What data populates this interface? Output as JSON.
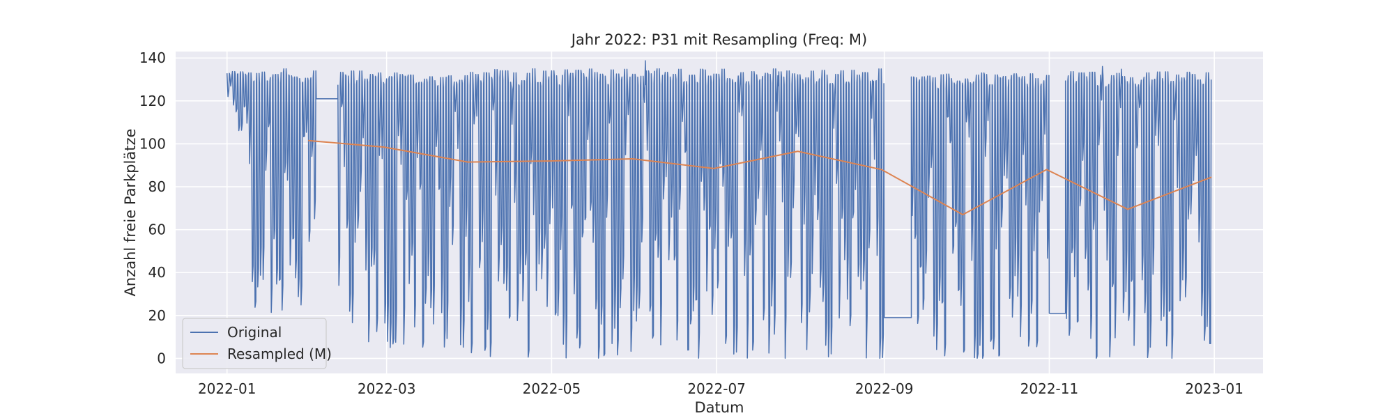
{
  "chart_data": {
    "type": "line",
    "title": "Jahr 2022: P31 mit Resampling (Freq: M)",
    "xlabel": "Datum",
    "ylabel": "Anzahl freie Parkplätze",
    "x_type": "date",
    "xlim": [
      "2021-12-13",
      "2023-01-19"
    ],
    "ylim": [
      -7,
      143
    ],
    "x_ticks": [
      "2022-01",
      "2022-03",
      "2022-05",
      "2022-07",
      "2022-09",
      "2022-11",
      "2023-01"
    ],
    "y_ticks": [
      0,
      20,
      40,
      60,
      80,
      100,
      120,
      140
    ],
    "grid": true,
    "legend": {
      "position": "lower-left"
    },
    "colors": {
      "original": "#4c72b0",
      "resampled": "#dd8452",
      "plot_bg": "#eaeaf2",
      "grid": "#ffffff"
    },
    "series": [
      {
        "name": "Original",
        "kind": "dense-daily-oscillation",
        "segments": [
          {
            "start": "2022-01-01",
            "end": "2022-01-08",
            "low": 105,
            "high": 134
          },
          {
            "start": "2022-01-08",
            "end": "2022-02-01",
            "low": 20,
            "high": 135
          },
          {
            "start": "2022-02-01",
            "end": "2022-02-03",
            "low": 45,
            "high": 135
          },
          {
            "start": "2022-02-03",
            "end": "2022-02-11",
            "flat": 121
          },
          {
            "start": "2022-02-11",
            "end": "2022-03-31",
            "low": 5,
            "high": 134
          },
          {
            "start": "2022-03-31",
            "end": "2022-05-31",
            "low": 0,
            "high": 135
          },
          {
            "start": "2022-05-31",
            "end": "2022-08-31",
            "low": 0,
            "high": 135
          },
          {
            "start": "2022-08-31",
            "end": "2022-09-01",
            "low": 0,
            "high": 132
          },
          {
            "start": "2022-09-01",
            "end": "2022-09-11",
            "flat": 19
          },
          {
            "start": "2022-09-11",
            "end": "2022-10-31",
            "low": 0,
            "high": 133
          },
          {
            "start": "2022-10-31",
            "end": "2022-11-01",
            "low": 20,
            "high": 132
          },
          {
            "start": "2022-11-01",
            "end": "2022-11-07",
            "flat": 21
          },
          {
            "start": "2022-11-07",
            "end": "2022-12-31",
            "low": 0,
            "high": 134
          }
        ]
      },
      {
        "name": "Resampled (M)",
        "x": [
          "2022-01-31",
          "2022-02-28",
          "2022-03-31",
          "2022-04-30",
          "2022-05-31",
          "2022-06-30",
          "2022-07-31",
          "2022-08-31",
          "2022-09-30",
          "2022-10-31",
          "2022-11-30",
          "2022-12-31"
        ],
        "values": [
          101.5,
          98.5,
          91.5,
          92,
          93,
          88.5,
          96.5,
          88,
          67,
          88,
          69.5,
          84.5
        ]
      }
    ]
  }
}
